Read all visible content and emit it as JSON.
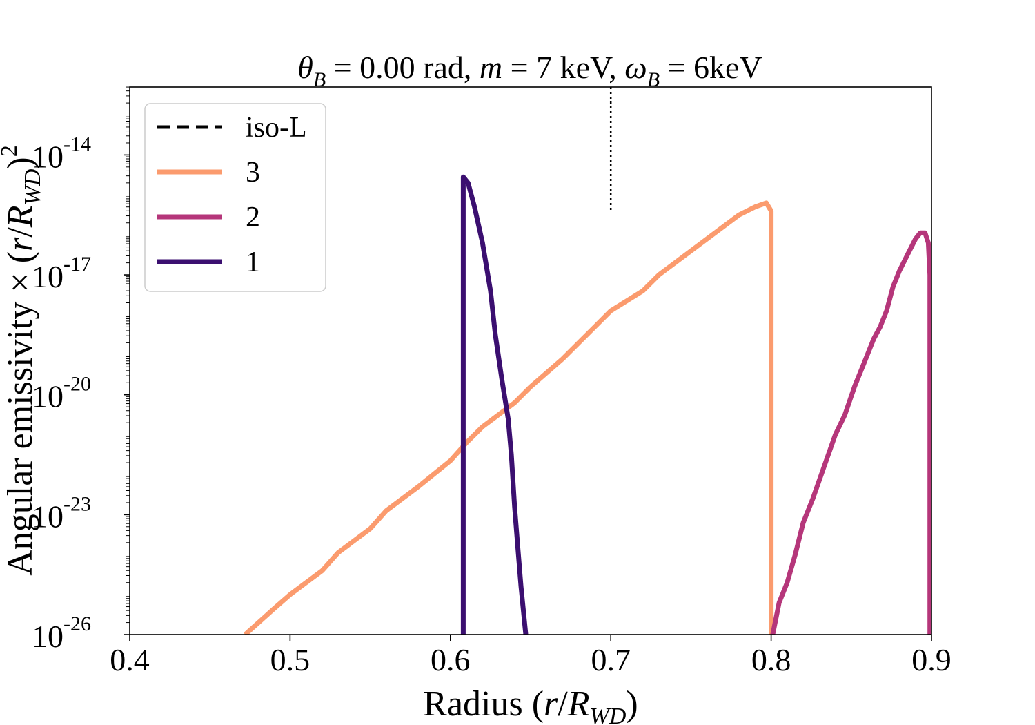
{
  "chart_data": {
    "type": "line",
    "title": {
      "theta_symbol": "θ",
      "theta_sub": "B",
      "eq1": " = 0.00 rad, ",
      "m_symbol": "m",
      "eq2": " = 7 keV, ",
      "omega_symbol": "ω",
      "omega_sub": "B",
      "eq3": " = 6keV"
    },
    "xlabel": {
      "prefix": "Radius (",
      "r": "r",
      "slash": "/",
      "R": "R",
      "sub": "WD",
      "suffix": ")"
    },
    "ylabel": {
      "prefix": "Angular emissivity × (",
      "r": "r",
      "slash": "/",
      "R": "R",
      "sub": "WD",
      "suffix": ")",
      "sup": "2"
    },
    "xlim": [
      0.4,
      0.9
    ],
    "ylim_log10": [
      -26,
      -12.3
    ],
    "yscale": "log",
    "grid": false,
    "legend_position": "top-left",
    "x_ticks": [
      {
        "value": 0.4,
        "label": "0.4"
      },
      {
        "value": 0.5,
        "label": "0.5"
      },
      {
        "value": 0.6,
        "label": "0.6"
      },
      {
        "value": 0.7,
        "label": "0.7"
      },
      {
        "value": 0.8,
        "label": "0.8"
      },
      {
        "value": 0.9,
        "label": "0.9"
      }
    ],
    "y_ticks": [
      {
        "exp": -26,
        "base": "10",
        "label": "-26"
      },
      {
        "exp": -23,
        "base": "10",
        "label": "-23"
      },
      {
        "exp": -20,
        "base": "10",
        "label": "-20"
      },
      {
        "exp": -17,
        "base": "10",
        "label": "-17"
      },
      {
        "exp": -14,
        "base": "10",
        "label": "-14"
      }
    ],
    "vline": {
      "x": 0.7,
      "style": "dotted",
      "color": "#000000"
    },
    "legend": [
      {
        "label": "iso-L",
        "color": "#000000",
        "dash": true
      },
      {
        "label": "3",
        "color": "#fb9b6e",
        "dash": false
      },
      {
        "label": "2",
        "color": "#b5367a",
        "dash": false
      },
      {
        "label": "1",
        "color": "#3b0f70",
        "dash": false
      }
    ],
    "series": [
      {
        "name": "3",
        "color": "#fb9b6e",
        "points": [
          [
            0.472,
            -26.0
          ],
          [
            0.49,
            -25.35
          ],
          [
            0.5,
            -25.0
          ],
          [
            0.52,
            -24.4
          ],
          [
            0.53,
            -23.95
          ],
          [
            0.55,
            -23.35
          ],
          [
            0.56,
            -22.9
          ],
          [
            0.58,
            -22.3
          ],
          [
            0.6,
            -21.65
          ],
          [
            0.61,
            -21.2
          ],
          [
            0.62,
            -20.8
          ],
          [
            0.64,
            -20.2
          ],
          [
            0.65,
            -19.8
          ],
          [
            0.67,
            -19.1
          ],
          [
            0.68,
            -18.7
          ],
          [
            0.69,
            -18.3
          ],
          [
            0.7,
            -17.9
          ],
          [
            0.72,
            -17.4
          ],
          [
            0.73,
            -17.0
          ],
          [
            0.75,
            -16.4
          ],
          [
            0.77,
            -15.8
          ],
          [
            0.78,
            -15.5
          ],
          [
            0.79,
            -15.3
          ],
          [
            0.797,
            -15.2
          ],
          [
            0.8,
            -15.4
          ],
          [
            0.8,
            -26.0
          ]
        ]
      },
      {
        "name": "2",
        "color": "#b5367a",
        "points": [
          [
            0.801,
            -26.0
          ],
          [
            0.805,
            -25.2
          ],
          [
            0.81,
            -24.7
          ],
          [
            0.815,
            -24.0
          ],
          [
            0.82,
            -23.2
          ],
          [
            0.826,
            -22.6
          ],
          [
            0.833,
            -21.8
          ],
          [
            0.84,
            -21.0
          ],
          [
            0.846,
            -20.5
          ],
          [
            0.852,
            -19.8
          ],
          [
            0.858,
            -19.2
          ],
          [
            0.864,
            -18.6
          ],
          [
            0.868,
            -18.3
          ],
          [
            0.872,
            -17.9
          ],
          [
            0.876,
            -17.3
          ],
          [
            0.88,
            -16.9
          ],
          [
            0.885,
            -16.5
          ],
          [
            0.89,
            -16.1
          ],
          [
            0.893,
            -15.95
          ],
          [
            0.896,
            -15.95
          ],
          [
            0.898,
            -16.2
          ],
          [
            0.899,
            -17.0
          ],
          [
            0.899,
            -26.0
          ]
        ]
      },
      {
        "name": "1",
        "color": "#3b0f70",
        "points": [
          [
            0.608,
            -26.0
          ],
          [
            0.608,
            -14.55
          ],
          [
            0.611,
            -14.7
          ],
          [
            0.615,
            -15.3
          ],
          [
            0.62,
            -16.2
          ],
          [
            0.625,
            -17.4
          ],
          [
            0.628,
            -18.5
          ],
          [
            0.632,
            -19.6
          ],
          [
            0.636,
            -20.6
          ],
          [
            0.638,
            -21.5
          ],
          [
            0.64,
            -22.8
          ],
          [
            0.642,
            -23.8
          ],
          [
            0.644,
            -24.8
          ],
          [
            0.647,
            -26.0
          ]
        ]
      }
    ]
  }
}
